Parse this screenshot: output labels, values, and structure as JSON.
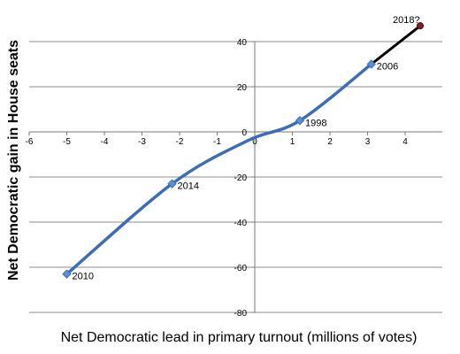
{
  "chart_data": {
    "type": "line",
    "xlabel": "Net Democratic lead in primary turnout (millions of votes)",
    "ylabel": "Net Democratic gain in House seats",
    "xlim": [
      -6,
      4
    ],
    "ylim": [
      -80,
      40
    ],
    "x_ticks": [
      -6,
      -5,
      -4,
      -3,
      -2,
      -1,
      0,
      1,
      2,
      3,
      4
    ],
    "y_ticks": [
      40,
      20,
      0,
      -20,
      -40,
      -60,
      -80
    ],
    "x_tick_labels": [
      "-6",
      "-5",
      "-4",
      "-3",
      "-2",
      "-1",
      "0",
      "1",
      "2",
      "3",
      "4"
    ],
    "y_tick_labels": [
      "40",
      "20",
      "0",
      "-20",
      "-40",
      "-60",
      "-80"
    ],
    "grid": "horizontal",
    "legend": "none",
    "series": [
      {
        "color": "#3d6eb4",
        "x": [
          -5.0,
          -2.2,
          1.2,
          3.1
        ],
        "y": [
          -63,
          -23,
          5,
          30
        ],
        "labels": [
          "2010",
          "2014",
          "1998",
          "2006"
        ]
      },
      {
        "color": "#000000",
        "x": [
          3.1,
          4.4
        ],
        "y": [
          30,
          47
        ],
        "labels": [
          "",
          "2018?"
        ]
      }
    ]
  }
}
